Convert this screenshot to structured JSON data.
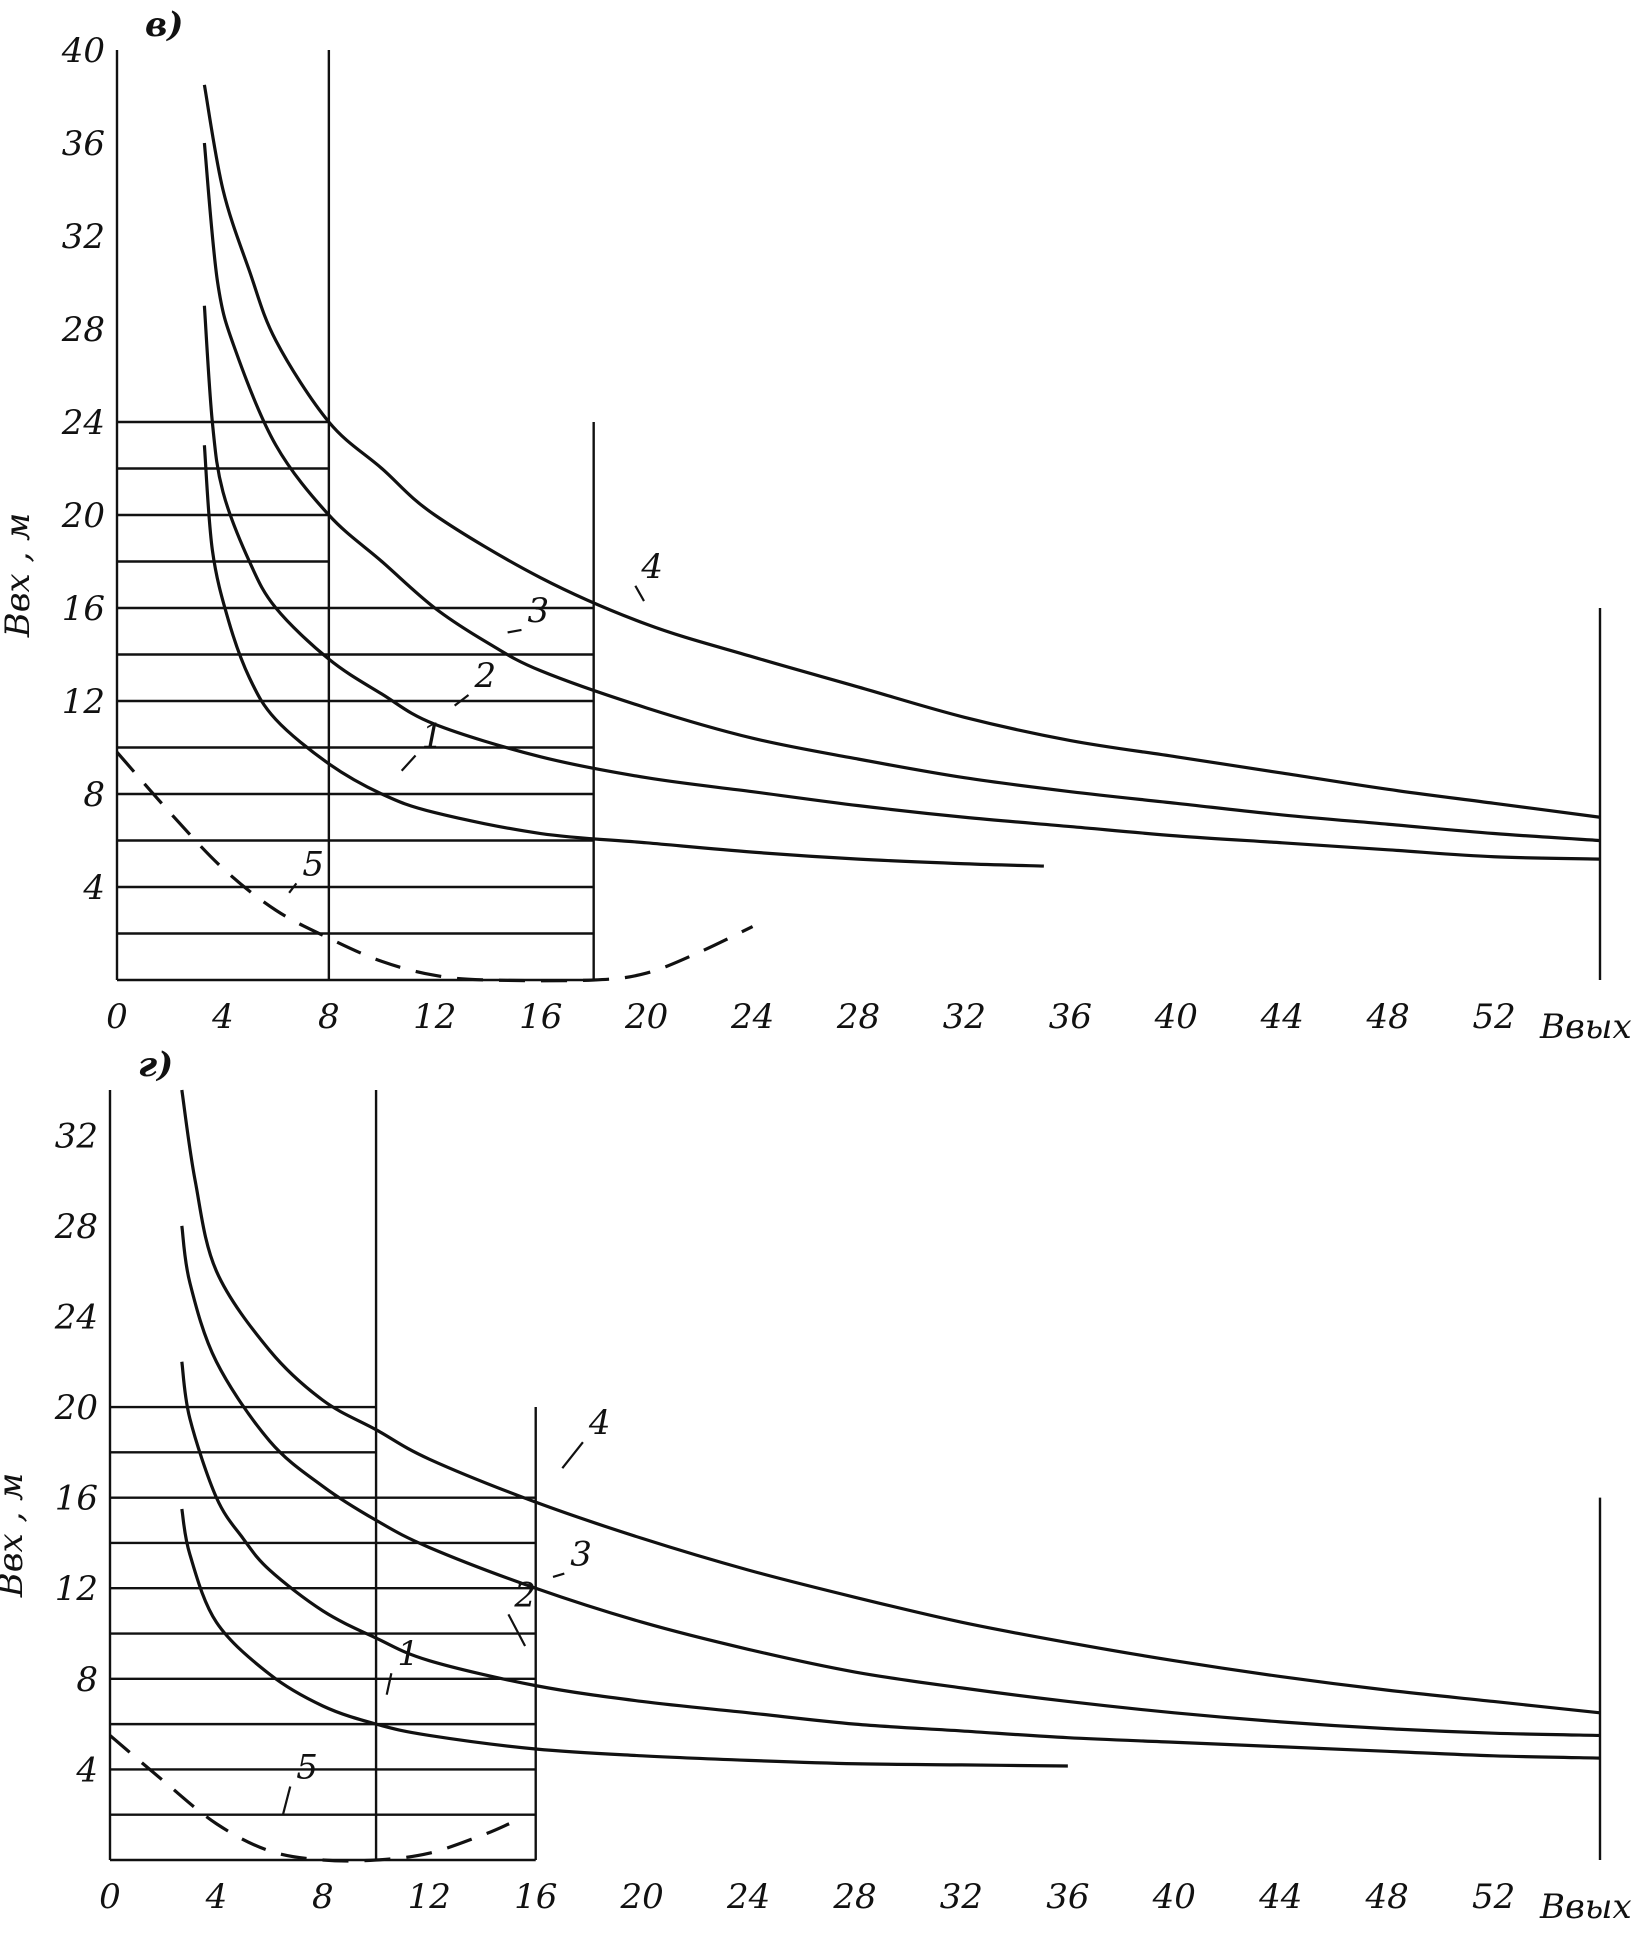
{
  "chart_data": [
    {
      "type": "line",
      "panel_label": "в)",
      "ylabel": "Bвх , м",
      "xlabel": "Bвых",
      "x_ticks": [
        "0",
        "4",
        "8",
        "12",
        "16",
        "20",
        "24",
        "28",
        "32",
        "36",
        "40",
        "44",
        "48",
        "52"
      ],
      "y_ticks": [
        "4",
        "8",
        "12",
        "16",
        "20",
        "24",
        "28",
        "32",
        "36",
        "40"
      ],
      "xlim": [
        0,
        56
      ],
      "ylim": [
        0,
        40
      ],
      "grid_outline": [
        [
          0,
          40
        ],
        [
          8,
          40
        ],
        [
          8,
          24
        ],
        [
          18,
          24
        ],
        [
          18,
          16
        ],
        [
          56,
          16
        ]
      ],
      "grid": "on",
      "series": [
        {
          "name": "1",
          "style": "solid",
          "label_at": [
            11.5,
            10.0
          ],
          "points": [
            [
              3.3,
              23
            ],
            [
              3.6,
              18.5
            ],
            [
              4.2,
              15.5
            ],
            [
              5,
              13
            ],
            [
              6,
              11.2
            ],
            [
              8,
              9.3
            ],
            [
              10,
              8
            ],
            [
              12,
              7.2
            ],
            [
              16,
              6.3
            ],
            [
              20,
              5.9
            ],
            [
              24,
              5.5
            ],
            [
              28,
              5.2
            ],
            [
              32,
              5.0
            ],
            [
              35,
              4.9
            ]
          ]
        },
        {
          "name": "2",
          "style": "solid",
          "label_at": [
            13.5,
            12.6
          ],
          "points": [
            [
              3.3,
              29
            ],
            [
              3.6,
              24
            ],
            [
              4,
              21
            ],
            [
              5,
              18
            ],
            [
              6,
              16
            ],
            [
              8,
              13.8
            ],
            [
              10,
              12.3
            ],
            [
              12,
              11
            ],
            [
              16,
              9.6
            ],
            [
              20,
              8.7
            ],
            [
              24,
              8.1
            ],
            [
              28,
              7.5
            ],
            [
              32,
              7.0
            ],
            [
              36,
              6.6
            ],
            [
              40,
              6.2
            ],
            [
              44,
              5.9
            ],
            [
              48,
              5.6
            ],
            [
              52,
              5.3
            ],
            [
              56,
              5.2
            ]
          ]
        },
        {
          "name": "3",
          "style": "solid",
          "label_at": [
            15.5,
            15.4
          ],
          "points": [
            [
              3.3,
              36
            ],
            [
              3.8,
              30
            ],
            [
              4.5,
              27
            ],
            [
              6,
              23
            ],
            [
              8,
              20
            ],
            [
              10,
              18
            ],
            [
              12,
              16
            ],
            [
              14,
              14.5
            ],
            [
              16,
              13.3
            ],
            [
              20,
              11.7
            ],
            [
              24,
              10.4
            ],
            [
              28,
              9.5
            ],
            [
              32,
              8.7
            ],
            [
              36,
              8.1
            ],
            [
              40,
              7.6
            ],
            [
              44,
              7.1
            ],
            [
              48,
              6.7
            ],
            [
              52,
              6.3
            ],
            [
              56,
              6.0
            ]
          ]
        },
        {
          "name": "4",
          "style": "solid",
          "label_at": [
            19.8,
            17.3
          ],
          "points": [
            [
              3.3,
              38.5
            ],
            [
              4,
              34
            ],
            [
              5,
              30.5
            ],
            [
              6,
              27.5
            ],
            [
              8,
              24
            ],
            [
              10,
              22
            ],
            [
              12,
              20
            ],
            [
              16,
              17.3
            ],
            [
              20,
              15.3
            ],
            [
              24,
              13.9
            ],
            [
              28,
              12.6
            ],
            [
              32,
              11.3
            ],
            [
              36,
              10.3
            ],
            [
              40,
              9.6
            ],
            [
              44,
              8.9
            ],
            [
              48,
              8.2
            ],
            [
              52,
              7.6
            ],
            [
              56,
              7.0
            ]
          ]
        },
        {
          "name": "5",
          "style": "dashed",
          "label_at": [
            7.0,
            4.5
          ],
          "points": [
            [
              0,
              9.8
            ],
            [
              2,
              7.2
            ],
            [
              4,
              4.8
            ],
            [
              6,
              3.0
            ],
            [
              8,
              1.8
            ],
            [
              10,
              0.8
            ],
            [
              12,
              0.2
            ],
            [
              14,
              0
            ],
            [
              18,
              0
            ],
            [
              20,
              0.3
            ],
            [
              22,
              1.2
            ],
            [
              24,
              2.3
            ]
          ]
        }
      ]
    },
    {
      "type": "line",
      "panel_label": "г)",
      "ylabel": "Bвх , м",
      "xlabel": "Bвых",
      "x_ticks": [
        "0",
        "4",
        "8",
        "12",
        "16",
        "20",
        "24",
        "28",
        "32",
        "36",
        "40",
        "44",
        "48",
        "52"
      ],
      "y_ticks": [
        "4",
        "8",
        "12",
        "16",
        "20",
        "24",
        "28",
        "32"
      ],
      "xlim": [
        0,
        56
      ],
      "ylim": [
        0,
        34
      ],
      "grid_outline": [
        [
          0,
          34
        ],
        [
          10,
          34
        ],
        [
          10,
          20
        ],
        [
          16,
          20
        ],
        [
          16,
          16
        ],
        [
          56,
          16
        ]
      ],
      "grid": "on",
      "series": [
        {
          "name": "1",
          "style": "solid",
          "label_at": [
            10.8,
            8.6
          ],
          "points": [
            [
              2.7,
              15.5
            ],
            [
              3,
              13.5
            ],
            [
              4,
              10.5
            ],
            [
              6,
              8.2
            ],
            [
              8,
              6.8
            ],
            [
              10,
              6.0
            ],
            [
              12,
              5.5
            ],
            [
              16,
              4.9
            ],
            [
              20,
              4.6
            ],
            [
              24,
              4.4
            ],
            [
              28,
              4.25
            ],
            [
              32,
              4.2
            ],
            [
              36,
              4.15
            ]
          ]
        },
        {
          "name": "2",
          "style": "solid",
          "label_at": [
            15.2,
            11.2
          ],
          "points": [
            [
              2.7,
              22
            ],
            [
              3,
              19.5
            ],
            [
              4,
              16
            ],
            [
              5,
              14.2
            ],
            [
              6,
              12.8
            ],
            [
              8,
              11
            ],
            [
              10,
              9.8
            ],
            [
              12,
              8.8
            ],
            [
              16,
              7.7
            ],
            [
              20,
              7.0
            ],
            [
              24,
              6.5
            ],
            [
              28,
              6.0
            ],
            [
              32,
              5.7
            ],
            [
              36,
              5.4
            ],
            [
              40,
              5.2
            ],
            [
              44,
              5.0
            ],
            [
              48,
              4.8
            ],
            [
              52,
              4.6
            ],
            [
              56,
              4.5
            ]
          ]
        },
        {
          "name": "3",
          "style": "solid",
          "label_at": [
            17.3,
            13.0
          ],
          "points": [
            [
              2.7,
              28
            ],
            [
              3,
              25.5
            ],
            [
              4,
              22
            ],
            [
              6,
              18.5
            ],
            [
              8,
              16.5
            ],
            [
              10,
              15
            ],
            [
              12,
              13.8
            ],
            [
              16,
              12
            ],
            [
              20,
              10.5
            ],
            [
              24,
              9.3
            ],
            [
              28,
              8.3
            ],
            [
              32,
              7.6
            ],
            [
              36,
              7.0
            ],
            [
              40,
              6.5
            ],
            [
              44,
              6.1
            ],
            [
              48,
              5.8
            ],
            [
              52,
              5.6
            ],
            [
              56,
              5.5
            ]
          ]
        },
        {
          "name": "4",
          "style": "solid",
          "label_at": [
            18.0,
            18.8
          ],
          "points": [
            [
              2.7,
              34
            ],
            [
              3.2,
              30
            ],
            [
              4,
              26
            ],
            [
              6,
              22.5
            ],
            [
              8,
              20.3
            ],
            [
              10,
              19
            ],
            [
              12,
              17.7
            ],
            [
              16,
              15.8
            ],
            [
              20,
              14.2
            ],
            [
              24,
              12.8
            ],
            [
              28,
              11.6
            ],
            [
              32,
              10.5
            ],
            [
              36,
              9.6
            ],
            [
              40,
              8.8
            ],
            [
              44,
              8.1
            ],
            [
              48,
              7.5
            ],
            [
              52,
              7.0
            ],
            [
              56,
              6.5
            ]
          ]
        },
        {
          "name": "5",
          "style": "dashed",
          "label_at": [
            7.0,
            3.6
          ],
          "points": [
            [
              0,
              5.5
            ],
            [
              2,
              3.5
            ],
            [
              4,
              1.6
            ],
            [
              6,
              0.4
            ],
            [
              8,
              0
            ],
            [
              10,
              0
            ],
            [
              12,
              0.3
            ],
            [
              14,
              1.1
            ],
            [
              15,
              1.6
            ]
          ]
        }
      ]
    }
  ]
}
